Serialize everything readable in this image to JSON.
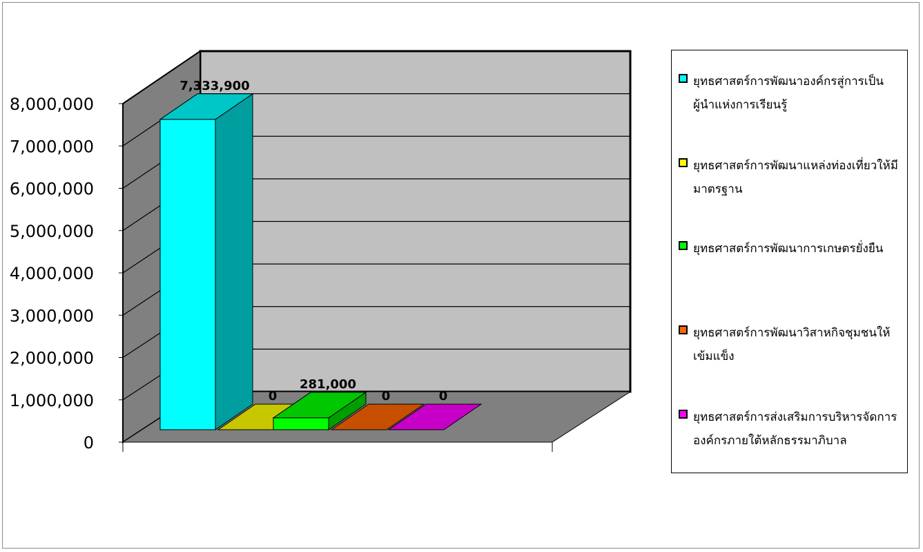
{
  "chart_data": {
    "type": "bar",
    "title": "",
    "xlabel": "",
    "ylabel": "",
    "ylim": [
      0,
      8000000
    ],
    "y_ticks": [
      "0",
      "1,000,000",
      "2,000,000",
      "3,000,000",
      "4,000,000",
      "5,000,000",
      "6,000,000",
      "7,000,000",
      "8,000,000"
    ],
    "grid": true,
    "legend_position": "right",
    "series": [
      {
        "name": "ยุทธศาสตร์การพัฒนาองค์กรสู่การเป็นผู้นำแห่งการเรียนรู้",
        "value": 7333900,
        "label": "7,333,900",
        "color": "#00FFFF"
      },
      {
        "name": "ยุทธศาสตร์การพัฒนาแหล่งท่องเที่ยวให้มีมาตรฐาน",
        "value": 0,
        "label": "0",
        "color": "#FFFF00"
      },
      {
        "name": "ยุทธศาสตร์การพัฒนาการเกษตรยั่งยืน",
        "value": 281000,
        "label": "281,000",
        "color": "#00FF00"
      },
      {
        "name": "ยุทธศาสตร์การพัฒนาวิสาหกิจชุมชนให้เข้มแข็ง",
        "value": 0,
        "label": "0",
        "color": "#FF6600"
      },
      {
        "name": "ยุทธศาสตร์การส่งเสริมการบริหารจัดการองค์กรภายใต้หลักธรรมาภิบาล",
        "value": 0,
        "label": "0",
        "color": "#FF00FF"
      }
    ]
  }
}
